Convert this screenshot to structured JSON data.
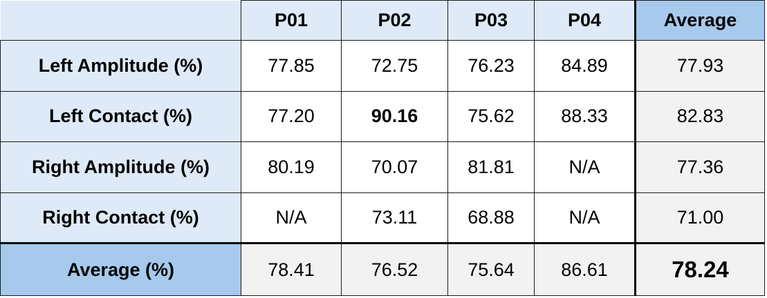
{
  "table": {
    "columns": [
      "P01",
      "P02",
      "P03",
      "P04",
      "Average"
    ],
    "rows": [
      {
        "label": "Left Amplitude (%)",
        "values": [
          "77.85",
          "72.75",
          "76.23",
          "84.89"
        ],
        "average": "77.93"
      },
      {
        "label": "Left Contact (%)",
        "values": [
          "77.20",
          "90.16",
          "75.62",
          "88.33"
        ],
        "average": "82.83"
      },
      {
        "label": "Right Amplitude (%)",
        "values": [
          "80.19",
          "70.07",
          "81.81",
          "N/A"
        ],
        "average": "77.36"
      },
      {
        "label": "Right Contact (%)",
        "values": [
          "N/A",
          "73.11",
          "68.88",
          "N/A"
        ],
        "average": "71.00"
      }
    ],
    "average_row": {
      "label": "Average (%)",
      "values": [
        "78.41",
        "76.52",
        "75.64",
        "86.61"
      ],
      "average": "78.24"
    },
    "colors": {
      "header_fill": "#deeaf7",
      "average_header_fill": "#a6c9ec",
      "average_cell_fill": "#f2f2f2",
      "border": "#000000"
    }
  }
}
